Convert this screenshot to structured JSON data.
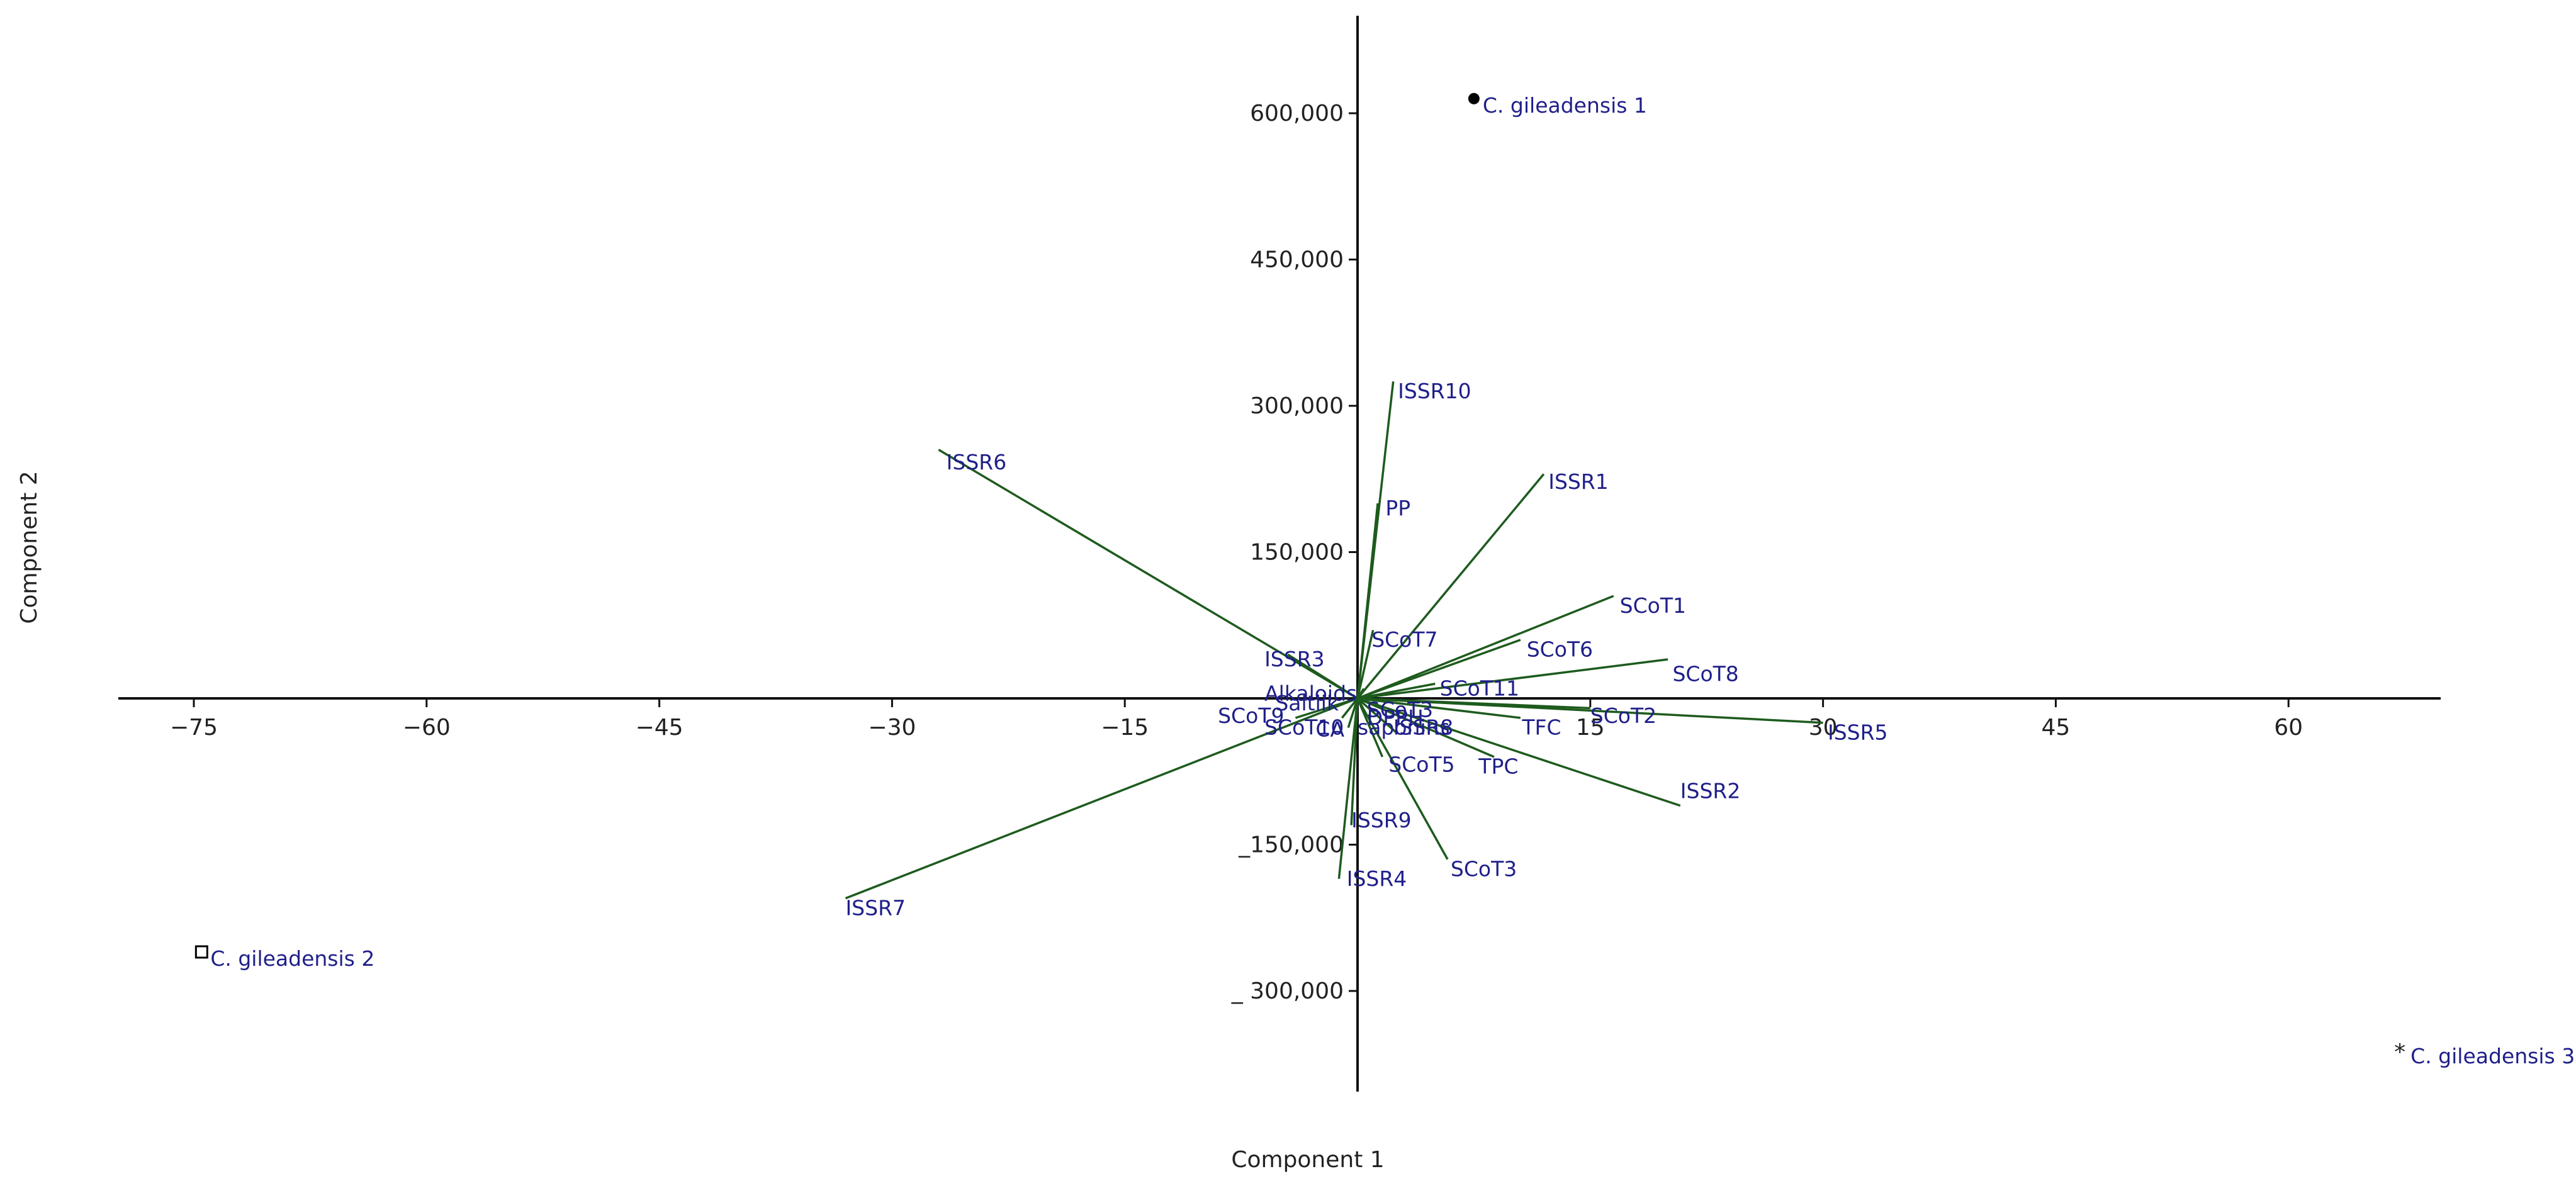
{
  "chart_data": {
    "type": "scatter",
    "subtype": "biplot",
    "xlabel": "Component 1",
    "ylabel": "Component 2",
    "xlim": [
      -80,
      70
    ],
    "ylim": [
      -400000,
      700000
    ],
    "x_ticks": [
      {
        "value": -75,
        "label": "−75"
      },
      {
        "value": -60,
        "label": "−60"
      },
      {
        "value": -45,
        "label": "−45"
      },
      {
        "value": -30,
        "label": "−30"
      },
      {
        "value": -15,
        "label": "−15"
      },
      {
        "value": 15,
        "label": "15"
      },
      {
        "value": 30,
        "label": "30"
      },
      {
        "value": 45,
        "label": "45"
      },
      {
        "value": 60,
        "label": "60"
      }
    ],
    "y_ticks": [
      {
        "value": 600000,
        "label": "600,000"
      },
      {
        "value": 450000,
        "label": "450,000"
      },
      {
        "value": 300000,
        "label": "300,000"
      },
      {
        "value": 150000,
        "label": "150,000"
      },
      {
        "value": -150000,
        "label": "_150,000"
      },
      {
        "value": -300000,
        "label": "_ 300,000"
      }
    ],
    "grid": false,
    "colors": {
      "axis": "#111111",
      "vector": "#1e5b1e",
      "label": "#1f1f8a",
      "point": "#000000"
    },
    "points": [
      {
        "name": "C. gileadensis 1",
        "x": 7.5,
        "y": 615000,
        "marker": "dot"
      },
      {
        "name": "C. gileadensis 2",
        "x": -74.5,
        "y": -260000,
        "marker": "square"
      },
      {
        "name": "C. gileadensis 3",
        "x": 67.3,
        "y": -360000,
        "marker": "star"
      }
    ],
    "vectors": [
      {
        "name": "ISSR10",
        "x": 2.3,
        "y": 325000,
        "lx": 2.6,
        "ly": 315000
      },
      {
        "name": "ISSR6",
        "x": -27,
        "y": 255000,
        "lx": -26.5,
        "ly": 242000
      },
      {
        "name": "PP",
        "x": 1.3,
        "y": 200000,
        "lx": 1.8,
        "ly": 195000
      },
      {
        "name": "ISSR1",
        "x": 12,
        "y": 230000,
        "lx": 12.3,
        "ly": 222000
      },
      {
        "name": "SCoT1",
        "x": 16.5,
        "y": 105000,
        "lx": 16.9,
        "ly": 95000
      },
      {
        "name": "SCoT7",
        "x": 1.0,
        "y": 70000,
        "lx": 0.9,
        "ly": 60000
      },
      {
        "name": "SCoT6",
        "x": 10.5,
        "y": 60000,
        "lx": 10.9,
        "ly": 50000
      },
      {
        "name": "ISSR3",
        "x": -4.5,
        "y": 45000,
        "lx": -6.0,
        "ly": 40000
      },
      {
        "name": "SCoT8",
        "x": 20,
        "y": 40000,
        "lx": 20.3,
        "ly": 25000
      },
      {
        "name": "SCoT11",
        "x": 5.0,
        "y": 15000,
        "lx": 5.3,
        "ly": 10000
      },
      {
        "name": "Alkaloids",
        "x": 0.4,
        "y": 10000,
        "lx": -6.0,
        "ly": 5000
      },
      {
        "name": "SCoT9",
        "x": -4.0,
        "y": -20000,
        "lx": -9.0,
        "ly": -18000
      },
      {
        "name": "CA",
        "x": -1.0,
        "y": -20000,
        "lx": -2.7,
        "ly": -32000
      },
      {
        "name": "SCoT2",
        "x": 15,
        "y": -10000,
        "lx": 15.0,
        "ly": -18000
      },
      {
        "name": "ISSR5",
        "x": 30,
        "y": -25000,
        "lx": 30.3,
        "ly": -35000
      },
      {
        "name": "TFC",
        "x": 10.5,
        "y": -20000,
        "lx": 10.6,
        "ly": -30000
      },
      {
        "name": "SCoT10",
        "x": -0.6,
        "y": -30000,
        "lx": -6.0,
        "ly": -30000
      },
      {
        "name": "saponins",
        "x": 2.5,
        "y": -35000,
        "lx": 0.0,
        "ly": -30000
      },
      {
        "name": "SCoT5",
        "x": 1.6,
        "y": -60000,
        "lx": 2.0,
        "ly": -68000
      },
      {
        "name": "TPC",
        "x": 8.8,
        "y": -60000,
        "lx": 7.8,
        "ly": -70000
      },
      {
        "name": "ISSR2",
        "x": 20.8,
        "y": -110000,
        "lx": 20.8,
        "ly": -95000
      },
      {
        "name": "ISSR9",
        "x": -0.4,
        "y": -130000,
        "lx": -0.4,
        "ly": -125000
      },
      {
        "name": "SCoT3",
        "x": 5.8,
        "y": -165000,
        "lx": 6.0,
        "ly": -175000
      },
      {
        "name": "ISSR4",
        "x": -1.2,
        "y": -185000,
        "lx": -0.7,
        "ly": -185000
      },
      {
        "name": "ISSR7",
        "x": -33,
        "y": -205000,
        "lx": -33.0,
        "ly": -215000
      }
    ],
    "cluster_labels": [
      {
        "text": "Saltlik",
        "x": -5.3,
        "y": -5000
      },
      {
        "text": "SCoT3",
        "x": 0.6,
        "y": -12000
      },
      {
        "text": "DPPH",
        "x": 0.6,
        "y": -20000
      },
      {
        "text": "ISSR8",
        "x": 2.3,
        "y": -30000
      }
    ]
  }
}
